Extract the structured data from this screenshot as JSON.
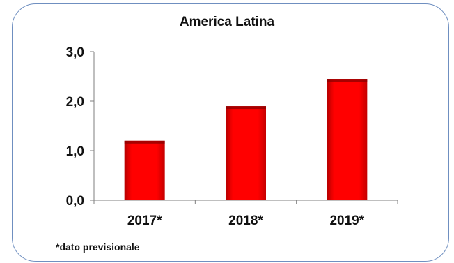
{
  "chart_data": {
    "type": "bar",
    "title": "America Latina",
    "categories": [
      "2017*",
      "2018*",
      "2019*"
    ],
    "values": [
      1.2,
      1.9,
      2.45
    ],
    "ylim": [
      0,
      3
    ],
    "yticks": [
      "0,0",
      "1,0",
      "2,0",
      "3,0"
    ],
    "ytick_values": [
      0,
      1,
      2,
      3
    ],
    "grid": false,
    "bar_color": "#ff0000",
    "bar_shadow_color": "#8b0000",
    "footnote": "*dato previsionale"
  }
}
